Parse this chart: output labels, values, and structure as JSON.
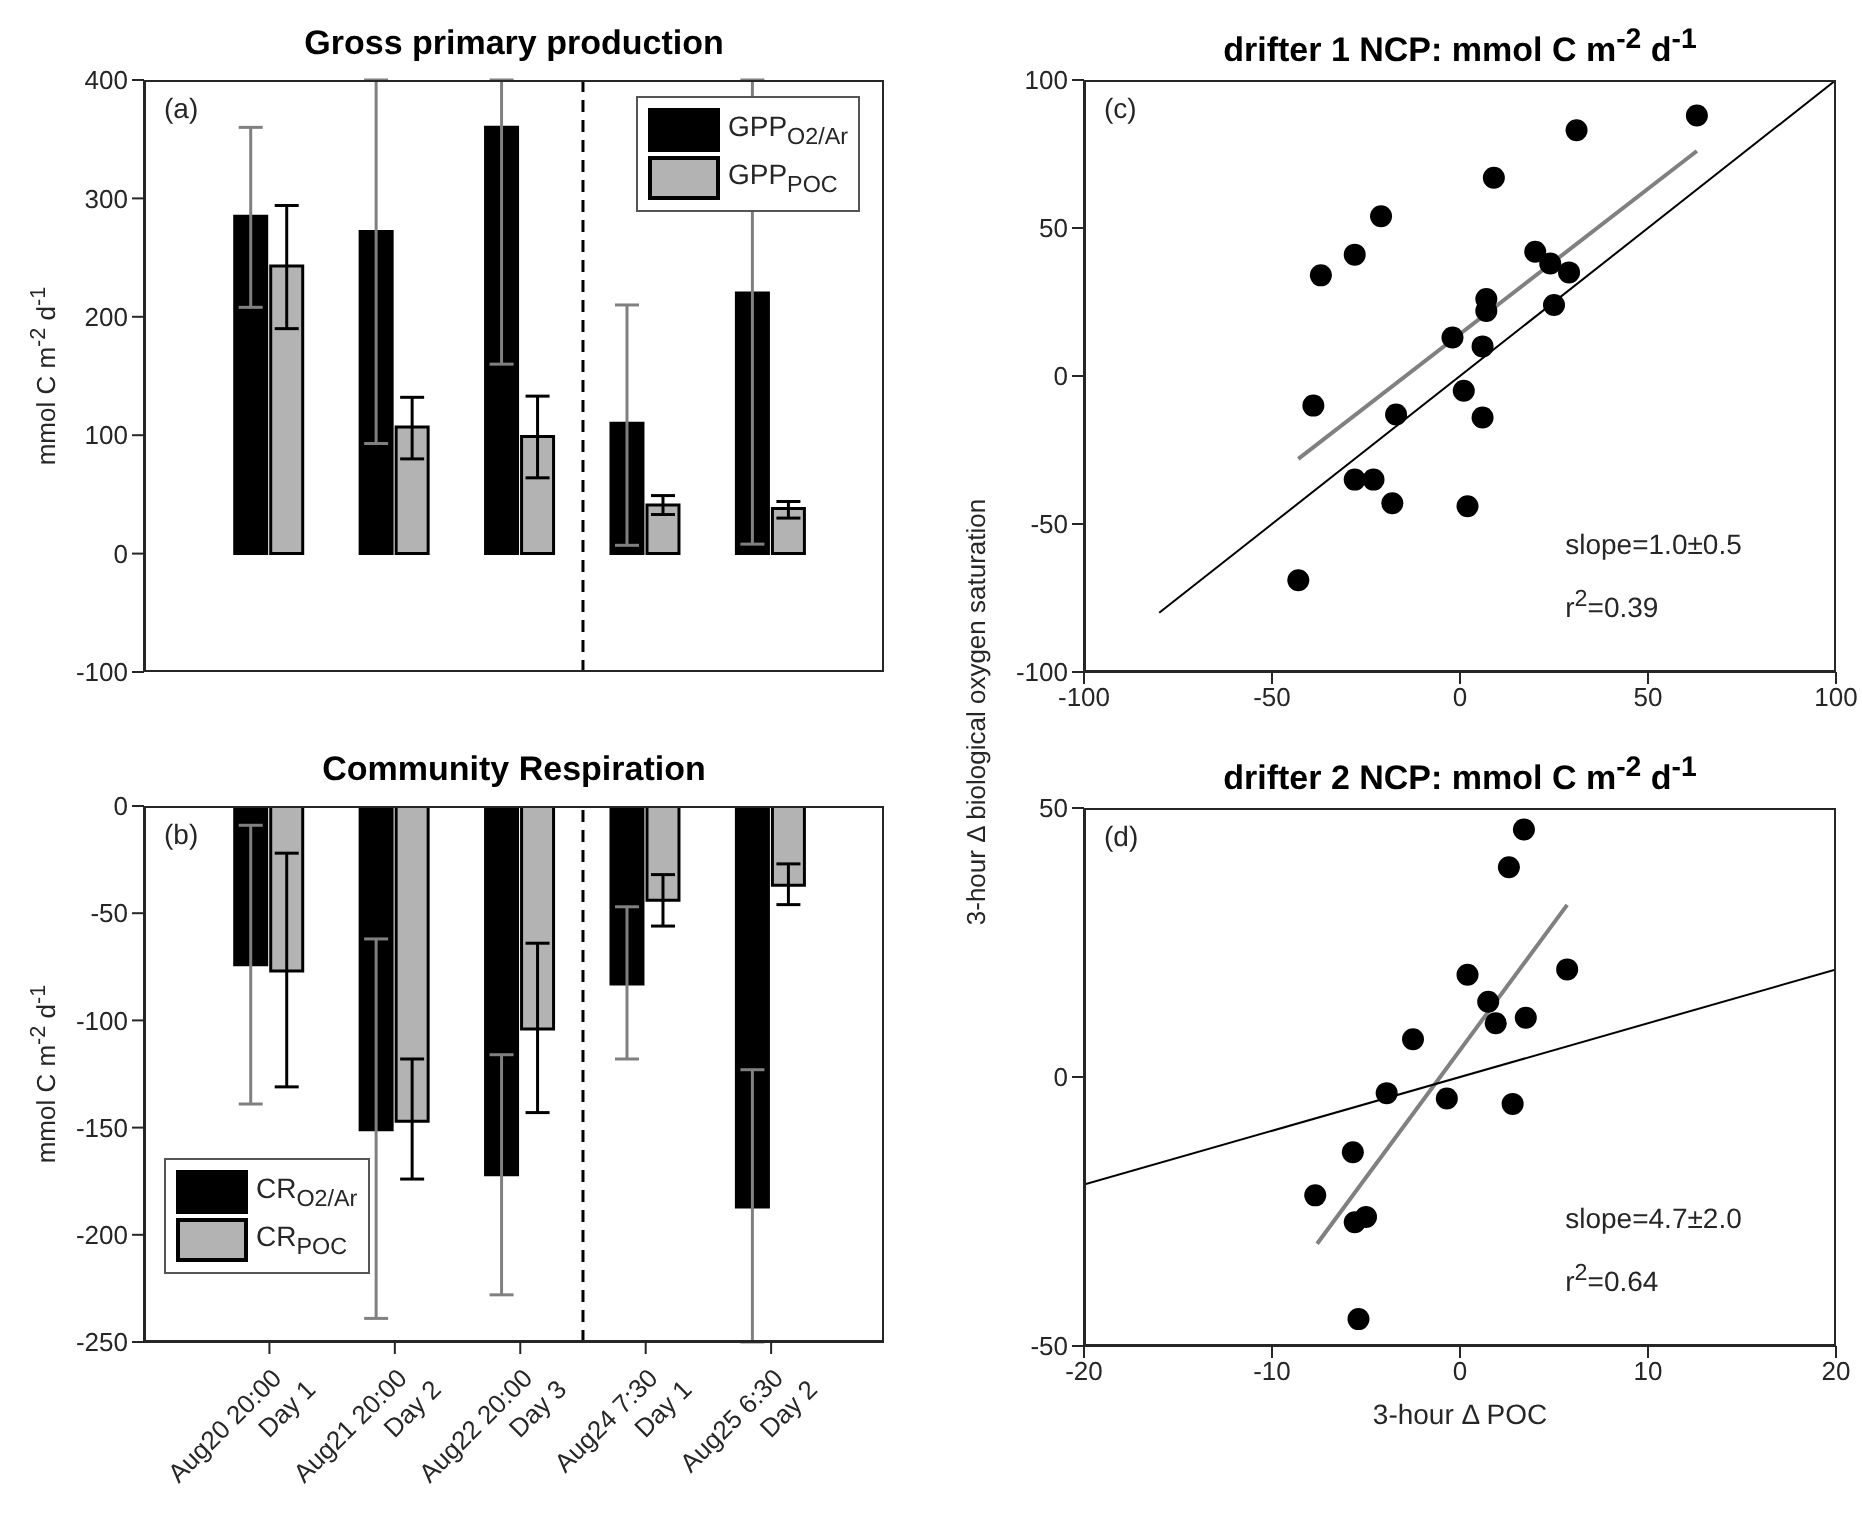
{
  "chart_data": [
    {
      "type": "bar",
      "title": "Gross primary production",
      "ylabel": "mmol C m$^{-2}$ d$^{-1}$",
      "categories": [
        null,
        null,
        null,
        null,
        null
      ],
      "series": [
        {
          "name": "GPP$_{O2/Ar}$",
          "color": "#000000",
          "values": [
            285,
            272,
            360,
            110,
            220
          ],
          "errors": [
            [
              208,
              360
            ],
            [
              93,
              400
            ],
            [
              160,
              400
            ],
            [
              7,
              210
            ],
            [
              8,
              400
            ]
          ]
        },
        {
          "name": "GPP$_{POC}$",
          "color": "#b3b3b3",
          "values": [
            243,
            107,
            99,
            41,
            38
          ],
          "errors": [
            [
              190,
              294
            ],
            [
              80,
              132
            ],
            [
              64,
              133
            ],
            [
              33,
              49
            ],
            [
              30,
              44
            ]
          ]
        }
      ],
      "ylim": [
        -100,
        400
      ],
      "yticks": [
        -100,
        0,
        100,
        200,
        300,
        400
      ],
      "tick_labels": "y",
      "legend": "top right",
      "annotations": [
        "(a)"
      ]
    },
    {
      "type": "bar",
      "title": "Community Respiration",
      "ylabel": "mmol C m$^{-2}$ d$^{-1}$",
      "categories": [
        "Aug20 20:00\nDay 1",
        "Aug21 20:00\nDay 2",
        "Aug22 20:00\nDay 3",
        "Aug24 7:30\nDay 1",
        "Aug25 6:30\nDay 2"
      ],
      "series": [
        {
          "name": "CR$_{O2/Ar}$",
          "color": "#000000",
          "values": [
            -74,
            -151,
            -172,
            -83,
            -187
          ],
          "errors": [
            [
              -139,
              -9
            ],
            [
              -239,
              -62
            ],
            [
              -228,
              -116
            ],
            [
              -118,
              -47
            ],
            [
              -250,
              -123
            ]
          ]
        },
        {
          "name": "CR$_{POC}$",
          "color": "#b3b3b3",
          "values": [
            -77,
            -147,
            -104,
            -44,
            -37
          ],
          "errors": [
            [
              -131,
              -22
            ],
            [
              -174,
              -118
            ],
            [
              -143,
              -64
            ],
            [
              -56,
              -32
            ],
            [
              -46,
              -27
            ]
          ]
        }
      ],
      "ylim": [
        -250,
        0
      ],
      "yticks": [
        -250,
        -200,
        -150,
        -100,
        -50,
        0
      ],
      "legend": "bottom left",
      "annotations": [
        "(b)"
      ]
    },
    {
      "type": "scatter",
      "title": "drifter 1 NCP: mmol C m$^{-2}$ d$^{-1}$",
      "ylabel": "3-hour Δ biological oxygen saturation",
      "xlim": [
        -100,
        100
      ],
      "xticks": [
        -100,
        -50,
        0,
        50,
        100
      ],
      "ylim": [
        -100,
        100
      ],
      "yticks": [
        -100,
        -50,
        0,
        50,
        100
      ],
      "series": [
        {
          "color": "#000000",
          "marker": "circle",
          "x": [
            63,
            31,
            9,
            -21,
            -28,
            -37,
            20,
            24,
            29,
            25,
            7,
            7,
            -2,
            6,
            1,
            6,
            -17,
            -39,
            -28,
            -23,
            -18,
            2,
            -43
          ],
          "values": [
            88,
            83,
            67,
            54,
            41,
            34,
            42,
            38,
            35,
            24,
            26,
            22,
            13,
            10,
            -5,
            -14,
            -13,
            -10,
            -35,
            -35,
            -43,
            -44,
            -69
          ]
        },
        {
          "type": "line",
          "color": "#808080",
          "marker": "none",
          "x": [
            -43,
            63
          ],
          "values": [
            -28,
            76
          ]
        },
        {
          "type": "line",
          "color": "#000000",
          "marker": "none",
          "x": [
            -80,
            100
          ],
          "values": [
            -80,
            100
          ]
        }
      ],
      "annotations": [
        "(c)",
        "slope=1.0±0.5",
        "r$^{2}$=0.39"
      ]
    },
    {
      "type": "scatter",
      "title": "drifter 2 NCP: mmol C m$^{-2}$ d$^{-1}$",
      "xlabel": "3-hour Δ POC",
      "xlim": [
        -20,
        20
      ],
      "xticks": [
        -20,
        -10,
        0,
        10,
        20
      ],
      "ylim": [
        -50,
        50
      ],
      "yticks": [
        -50,
        0,
        50
      ],
      "series": [
        {
          "color": "#000000",
          "marker": "circle",
          "x": [
            3.4,
            2.6,
            5.7,
            0.4,
            1.5,
            1.9,
            3.5,
            -2.5,
            -3.9,
            -0.7,
            2.8,
            -5.7,
            -7.7,
            -5.6,
            -5.0,
            -5.4
          ],
          "values": [
            46,
            39,
            20,
            19,
            14,
            10,
            11,
            7,
            -3,
            -4,
            -5,
            -14,
            -22,
            -27,
            -26,
            -45
          ]
        },
        {
          "type": "line",
          "color": "#808080",
          "marker": "none",
          "x": [
            -7.6,
            5.7
          ],
          "values": [
            -31,
            32
          ]
        },
        {
          "type": "line",
          "color": "#000000",
          "marker": "none",
          "x": [
            -20,
            20
          ],
          "values": [
            -20,
            20
          ]
        }
      ],
      "annotations": [
        "(d)",
        "slope=4.7±2.0",
        "r$^{2}$=0.64"
      ]
    }
  ]
}
